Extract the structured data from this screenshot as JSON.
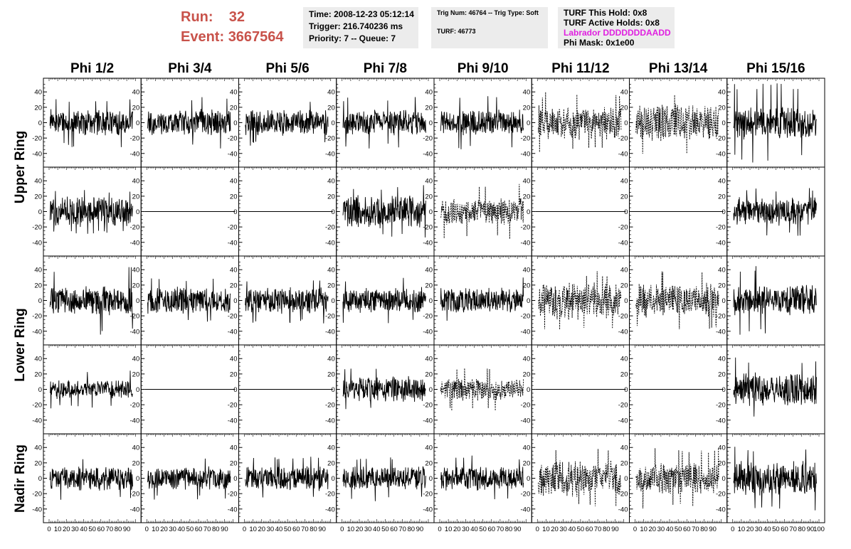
{
  "header": {
    "run_label": "Run:",
    "run_value": "32",
    "event_label": "Event:",
    "event_value": "3667564",
    "time_info": [
      "Time: 2008-12-23 05:12:14",
      "Trigger: 216.740236 ms",
      "Priority: 7 -- Queue: 7"
    ],
    "trig_info": [
      "Trig Num: 46764 -- Trig Type: Soft",
      "",
      "TURF: 46773"
    ],
    "turf_info": [
      {
        "text": "TURF This Hold: 0x8",
        "color": "#000000"
      },
      {
        "text": "TURF Active Holds: 0x8",
        "color": "#000000"
      },
      {
        "text": "Labrador DDDDDDDAADD",
        "color": "#e020e0"
      },
      {
        "text": "Phi Mask: 0x1e00",
        "color": "#000000"
      }
    ]
  },
  "columns": [
    "Phi 1/2",
    "Phi 3/4",
    "Phi 5/6",
    "Phi 7/8",
    "Phi 9/10",
    "Phi 11/12",
    "Phi 13/14",
    "Phi 15/16"
  ],
  "rings": [
    {
      "label": "Upper Ring",
      "rows": [
        0,
        1
      ]
    },
    {
      "label": "Lower Ring",
      "rows": [
        2,
        3
      ]
    },
    {
      "label": "Nadir Ring",
      "rows": [
        4
      ]
    }
  ],
  "chart_data": {
    "type": "line",
    "grid": "8 columns x 5 rows of waveform panels",
    "xlim": [
      0,
      100
    ],
    "ylim": [
      -55,
      55
    ],
    "y_ticks": [
      -40,
      -20,
      0,
      20,
      40
    ],
    "x_tick_labels": [
      "0",
      "10",
      "20",
      "30",
      "40",
      "50",
      "60",
      "70",
      "80",
      "90",
      "100"
    ],
    "panels": [
      [
        {
          "kind": "wave",
          "amp": 14,
          "peak": 32,
          "dashed": false
        },
        {
          "kind": "wave",
          "amp": 14,
          "peak": 35,
          "dashed": false
        },
        {
          "kind": "wave",
          "amp": 14,
          "peak": 30,
          "dashed": false
        },
        {
          "kind": "wave",
          "amp": 14,
          "peak": 34,
          "dashed": false
        },
        {
          "kind": "wave",
          "amp": 15,
          "peak": 36,
          "dashed": false
        },
        {
          "kind": "wave",
          "amp": 18,
          "peak": 40,
          "dashed": true
        },
        {
          "kind": "wave",
          "amp": 20,
          "peak": 42,
          "dashed": true
        },
        {
          "kind": "wave",
          "amp": 17,
          "peak": 52,
          "dashed": false
        }
      ],
      [
        {
          "kind": "wave",
          "amp": 16,
          "peak": 30,
          "dashed": false
        },
        {
          "kind": "flat"
        },
        {
          "kind": "flat"
        },
        {
          "kind": "wave",
          "amp": 17,
          "peak": 35,
          "dashed": false
        },
        {
          "kind": "wave",
          "amp": 14,
          "peak": 36,
          "dashed": true
        },
        {
          "kind": "flat"
        },
        {
          "kind": "flat"
        },
        {
          "kind": "wave",
          "amp": 15,
          "peak": 32,
          "dashed": false
        }
      ],
      [
        {
          "kind": "wave",
          "amp": 16,
          "peak": 45,
          "dashed": false
        },
        {
          "kind": "wave",
          "amp": 14,
          "peak": 30,
          "dashed": false
        },
        {
          "kind": "wave",
          "amp": 14,
          "peak": 30,
          "dashed": false
        },
        {
          "kind": "wave",
          "amp": 14,
          "peak": 30,
          "dashed": false
        },
        {
          "kind": "wave",
          "amp": 14,
          "peak": 30,
          "dashed": false
        },
        {
          "kind": "wave",
          "amp": 20,
          "peak": 38,
          "dashed": true
        },
        {
          "kind": "wave",
          "amp": 18,
          "peak": 38,
          "dashed": true
        },
        {
          "kind": "wave",
          "amp": 16,
          "peak": 45,
          "dashed": false
        }
      ],
      [
        {
          "kind": "wave",
          "amp": 10,
          "peak": 25,
          "dashed": false
        },
        {
          "kind": "flat"
        },
        {
          "kind": "flat"
        },
        {
          "kind": "wave",
          "amp": 14,
          "peak": 30,
          "dashed": false
        },
        {
          "kind": "wave",
          "amp": 12,
          "peak": 28,
          "dashed": true
        },
        {
          "kind": "flat"
        },
        {
          "kind": "flat"
        },
        {
          "kind": "wave",
          "amp": 18,
          "peak": 42,
          "dashed": false
        }
      ],
      [
        {
          "kind": "wave",
          "amp": 13,
          "peak": 30,
          "dashed": false
        },
        {
          "kind": "wave",
          "amp": 12,
          "peak": 28,
          "dashed": false
        },
        {
          "kind": "wave",
          "amp": 13,
          "peak": 30,
          "dashed": false
        },
        {
          "kind": "wave",
          "amp": 13,
          "peak": 30,
          "dashed": false
        },
        {
          "kind": "wave",
          "amp": 13,
          "peak": 30,
          "dashed": false
        },
        {
          "kind": "wave",
          "amp": 20,
          "peak": 40,
          "dashed": true
        },
        {
          "kind": "wave",
          "amp": 17,
          "peak": 40,
          "dashed": true
        },
        {
          "kind": "wave",
          "amp": 18,
          "peak": 42,
          "dashed": false
        }
      ]
    ]
  }
}
